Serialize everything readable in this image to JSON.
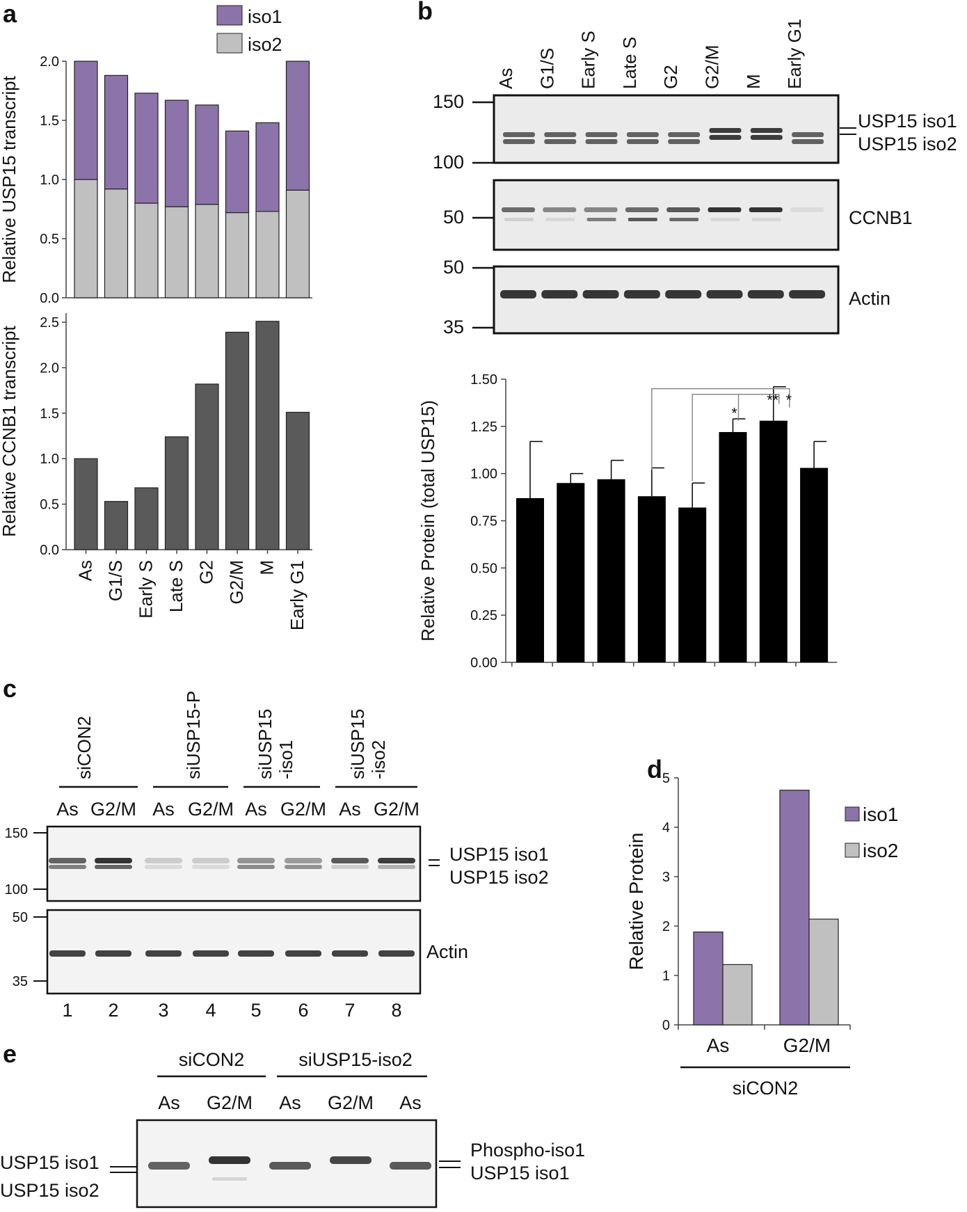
{
  "panels": {
    "a": "a",
    "b": "b",
    "c": "c",
    "d": "d",
    "e": "e"
  },
  "colors": {
    "iso1": "#8c73aa",
    "iso2": "#c0c0c0",
    "ccnb1_bar": "#5a5a5a",
    "black_bar": "#000000",
    "gel_bg": "#ebebeb",
    "band": "#333333"
  },
  "lanes_cycle": [
    "As",
    "G1/S",
    "Early S",
    "Late S",
    "G2",
    "G2/M",
    "M",
    "Early G1"
  ],
  "blot_b": {
    "markers_usp15": [
      "150",
      "100"
    ],
    "markers_ccnb1": [
      "50"
    ],
    "markers_actin": [
      "50",
      "35"
    ],
    "labels": {
      "iso1": "USP15 iso1",
      "iso2": "USP15 iso2",
      "ccnb1": "CCNB1",
      "actin": "Actin"
    }
  },
  "blot_c": {
    "groups": [
      "siCON2",
      "siUSP15-P",
      "siUSP15\n-iso1",
      "siUSP15\n-iso2"
    ],
    "lanes": [
      "As",
      "G2/M",
      "As",
      "G2/M",
      "As",
      "G2/M",
      "As",
      "G2/M"
    ],
    "lane_numbers": [
      "1",
      "2",
      "3",
      "4",
      "5",
      "6",
      "7",
      "8"
    ],
    "markers_usp15": [
      "150",
      "100"
    ],
    "markers_actin": [
      "50",
      "35"
    ],
    "labels": {
      "iso1": "USP15 iso1",
      "iso2": "USP15 iso2",
      "actin": "Actin"
    }
  },
  "blot_e": {
    "groups": [
      "siCON2",
      "siUSP15-iso2"
    ],
    "lanes": [
      "As",
      "G2/M",
      "As",
      "G2/M",
      "As"
    ],
    "left_labels": [
      "USP15 iso1",
      "USP15 iso2"
    ],
    "right_labels": [
      "Phospho-iso1",
      "USP15 iso1"
    ]
  },
  "chart_data": [
    {
      "id": "a-top",
      "type": "bar",
      "stacked": true,
      "categories": [
        "As",
        "G1/S",
        "Early S",
        "Late S",
        "G2",
        "G2/M",
        "M",
        "Early G1"
      ],
      "series": [
        {
          "name": "iso2",
          "values": [
            1.0,
            0.92,
            0.8,
            0.77,
            0.79,
            0.72,
            0.73,
            0.91
          ]
        },
        {
          "name": "iso1",
          "values": [
            1.0,
            0.96,
            0.93,
            0.9,
            0.84,
            0.69,
            0.75,
            1.09
          ]
        }
      ],
      "ylabel": "Relative USP15 transcript",
      "ylim": [
        0,
        2.0
      ],
      "yticks": [
        "0.0",
        "0.5",
        "1.0",
        "1.5",
        "2.0"
      ],
      "legend": "top"
    },
    {
      "id": "a-bottom",
      "type": "bar",
      "categories": [
        "As",
        "G1/S",
        "Early S",
        "Late S",
        "G2",
        "G2/M",
        "M",
        "Early G1"
      ],
      "values": [
        1.0,
        0.53,
        0.68,
        1.24,
        1.82,
        2.39,
        2.51,
        1.51
      ],
      "ylabel": "Relative CCNB1 transcript",
      "ylim": [
        0,
        2.5
      ],
      "yticks": [
        "0.0",
        "0.5",
        "1.0",
        "1.5",
        "2.0",
        "2.5"
      ]
    },
    {
      "id": "b-bar",
      "type": "bar",
      "categories": [
        "As",
        "G1/S",
        "Early S",
        "Late S",
        "G2",
        "G2/M",
        "M",
        "Early G1"
      ],
      "values": [
        0.87,
        0.95,
        0.97,
        0.88,
        0.82,
        1.22,
        1.28,
        1.03
      ],
      "errors": [
        0.3,
        0.05,
        0.1,
        0.15,
        0.13,
        0.07,
        0.18,
        0.14
      ],
      "ylabel": "Relative Protein (total USP15)",
      "ylim": [
        0,
        1.5
      ],
      "yticks": [
        "0.00",
        "0.25",
        "0.50",
        "0.75",
        "1.00",
        "1.25",
        "1.50"
      ],
      "significance": [
        "*",
        "**",
        "*"
      ]
    },
    {
      "id": "d",
      "type": "bar",
      "categories": [
        "As",
        "G2/M"
      ],
      "series": [
        {
          "name": "iso1",
          "values": [
            1.88,
            4.75
          ]
        },
        {
          "name": "iso2",
          "values": [
            1.22,
            2.14
          ]
        }
      ],
      "ylabel": "Relative Protein",
      "xlabel": "siCON2",
      "ylim": [
        0,
        5
      ],
      "yticks": [
        "0",
        "1",
        "2",
        "3",
        "4",
        "5"
      ],
      "legend": "right"
    }
  ]
}
